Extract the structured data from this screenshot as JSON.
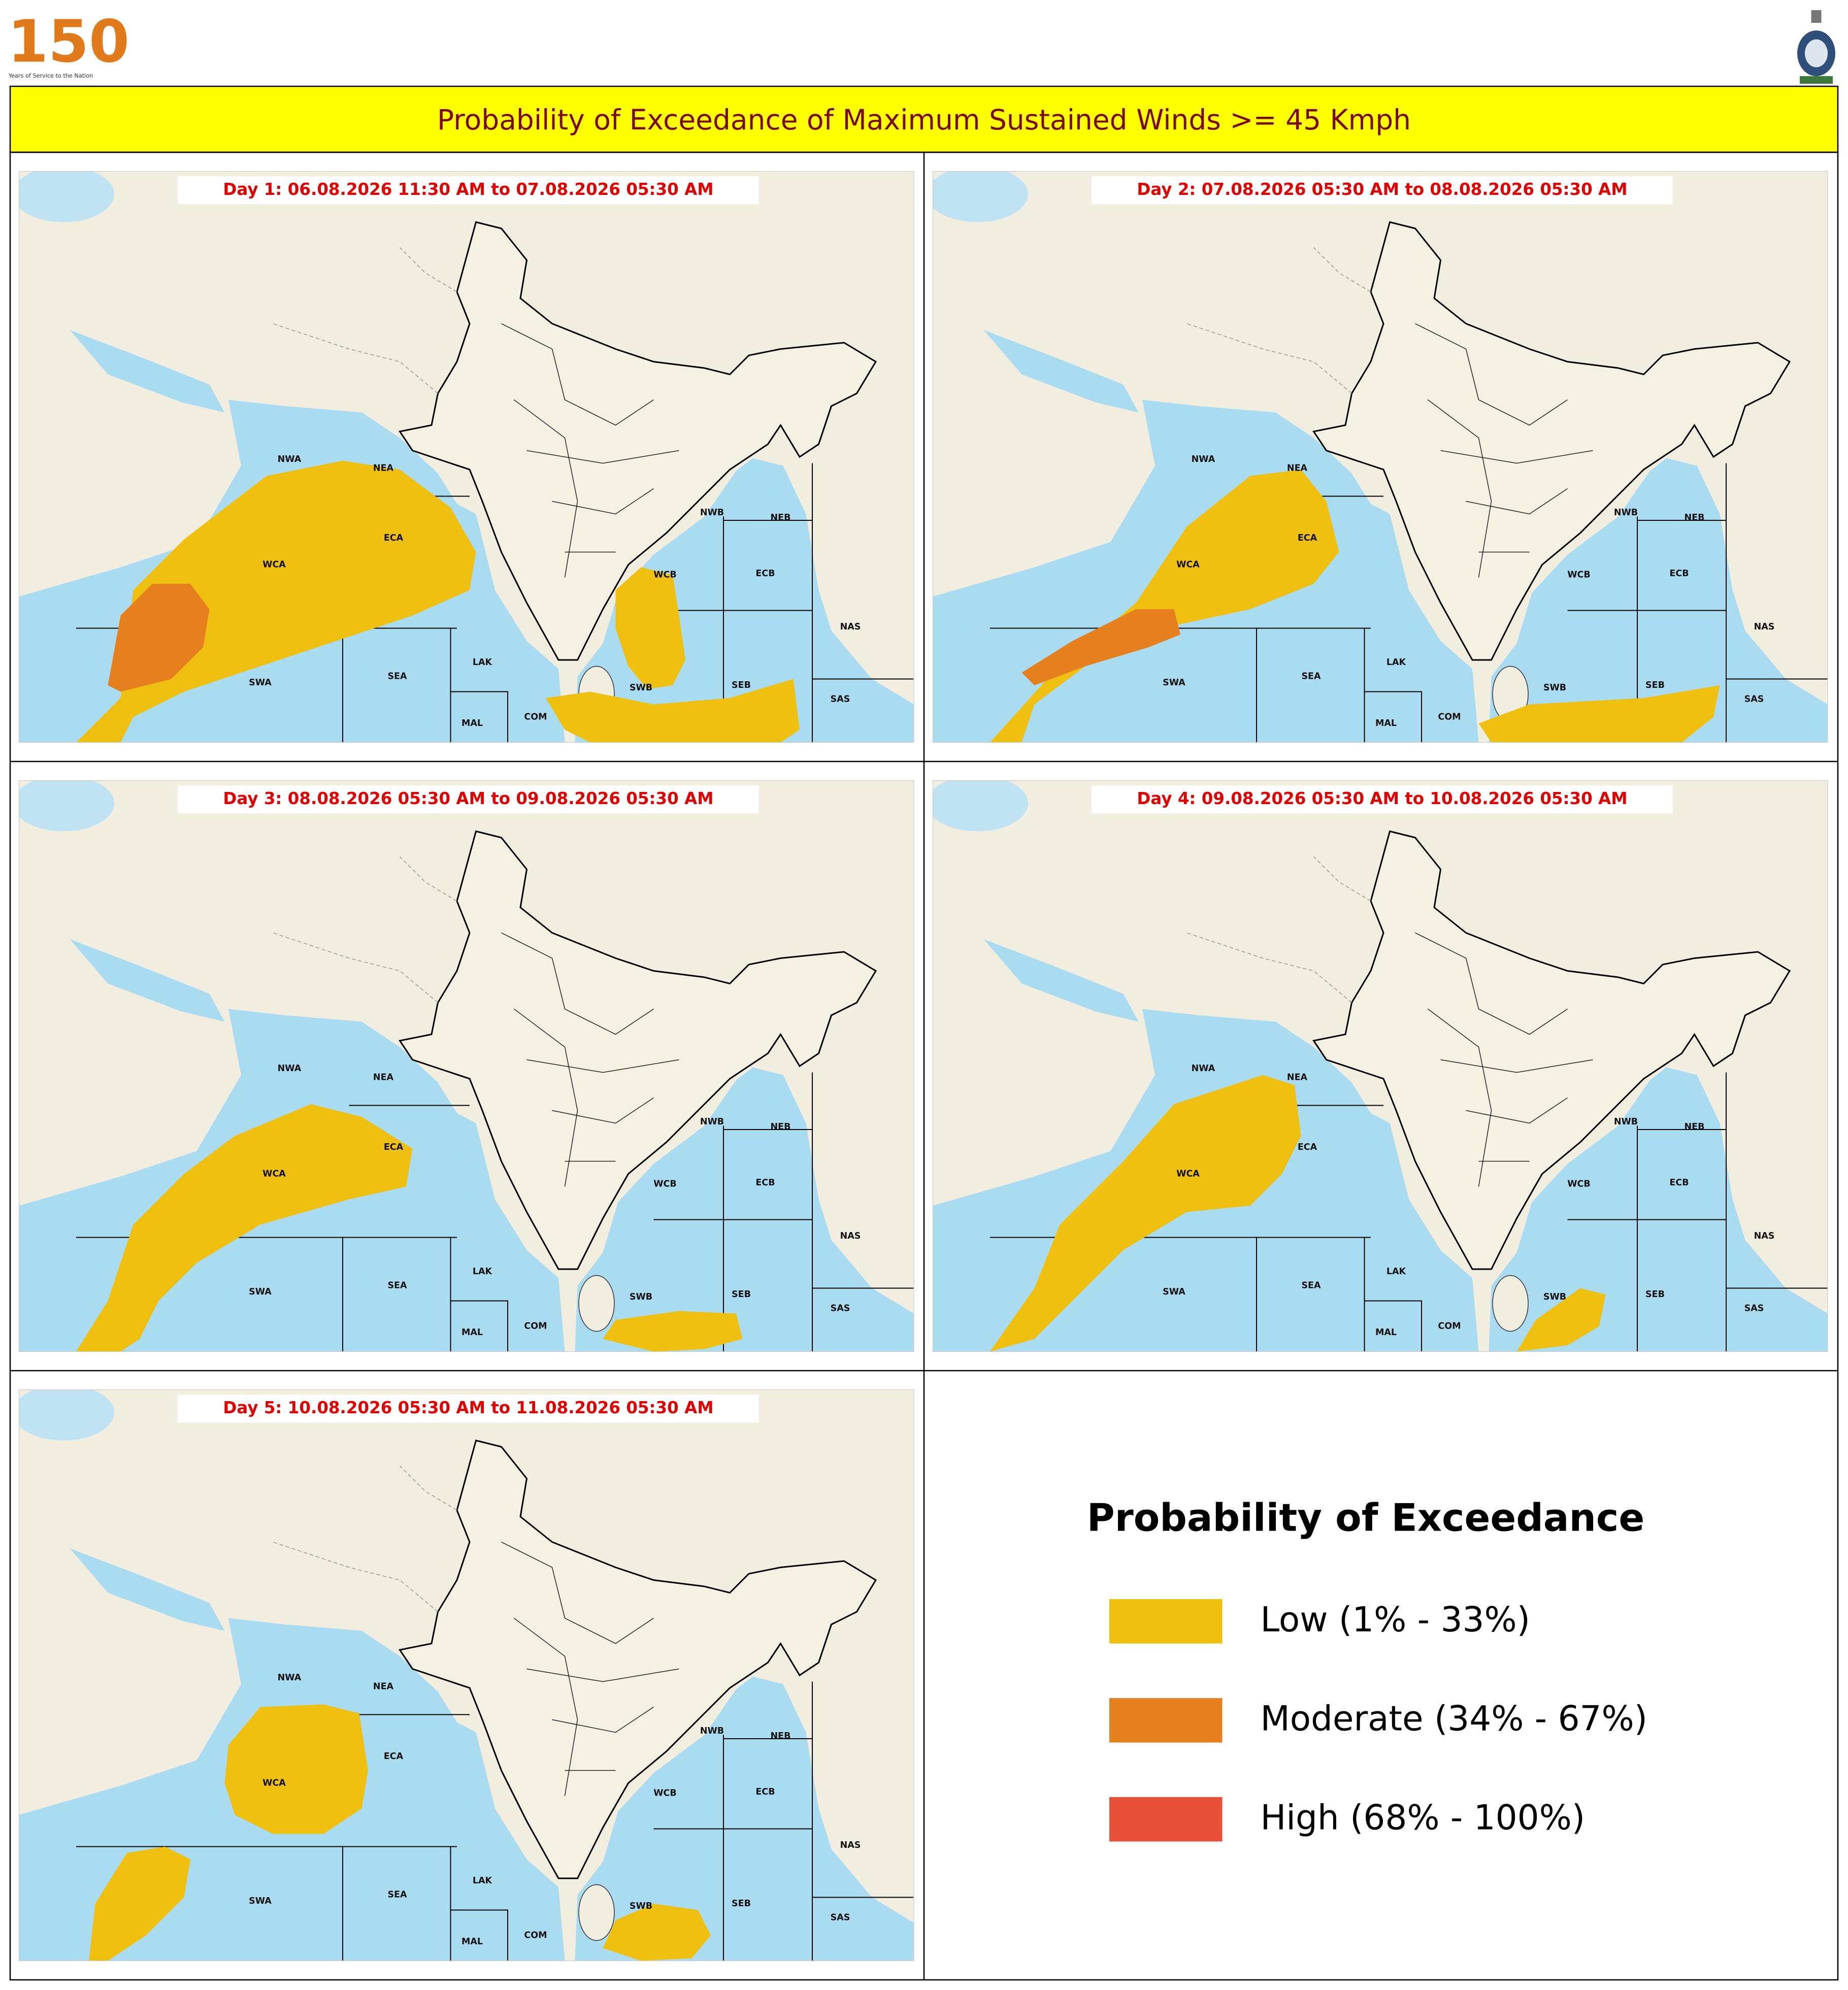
{
  "logo": {
    "number": "150",
    "tagline": "Years of Service to the Nation"
  },
  "header": {
    "title": "Probability of Exceedance of Maximum Sustained Winds >= 45 Kmph"
  },
  "panels": [
    {
      "label": "Day 1: 06.08.2026 11:30 AM to 07.08.2026 05:30 AM"
    },
    {
      "label": "Day 2: 07.08.2026 05:30 AM to 08.08.2026 05:30 AM"
    },
    {
      "label": "Day 3: 08.08.2026 05:30 AM to 09.08.2026 05:30 AM"
    },
    {
      "label": "Day 4: 09.08.2026 05:30 AM to 10.08.2026 05:30 AM"
    },
    {
      "label": "Day 5: 10.08.2026 05:30 AM to 11.08.2026 05:30 AM"
    }
  ],
  "region_labels": [
    "NWA",
    "NEA",
    "WCA",
    "ECA",
    "SWA",
    "SEA",
    "LAK",
    "MAL",
    "COM",
    "NWB",
    "NEB",
    "WCB",
    "ECB",
    "SWB",
    "SEB",
    "NAS",
    "SAS"
  ],
  "legend": {
    "title": "Probability of Exceedance",
    "items": [
      {
        "label": "Low (1% - 33%)",
        "color": "#f0c010"
      },
      {
        "label": "Moderate (34% - 67%)",
        "color": "#e6801e"
      },
      {
        "label": "High (68% - 100%)",
        "color": "#e8503a"
      }
    ]
  }
}
